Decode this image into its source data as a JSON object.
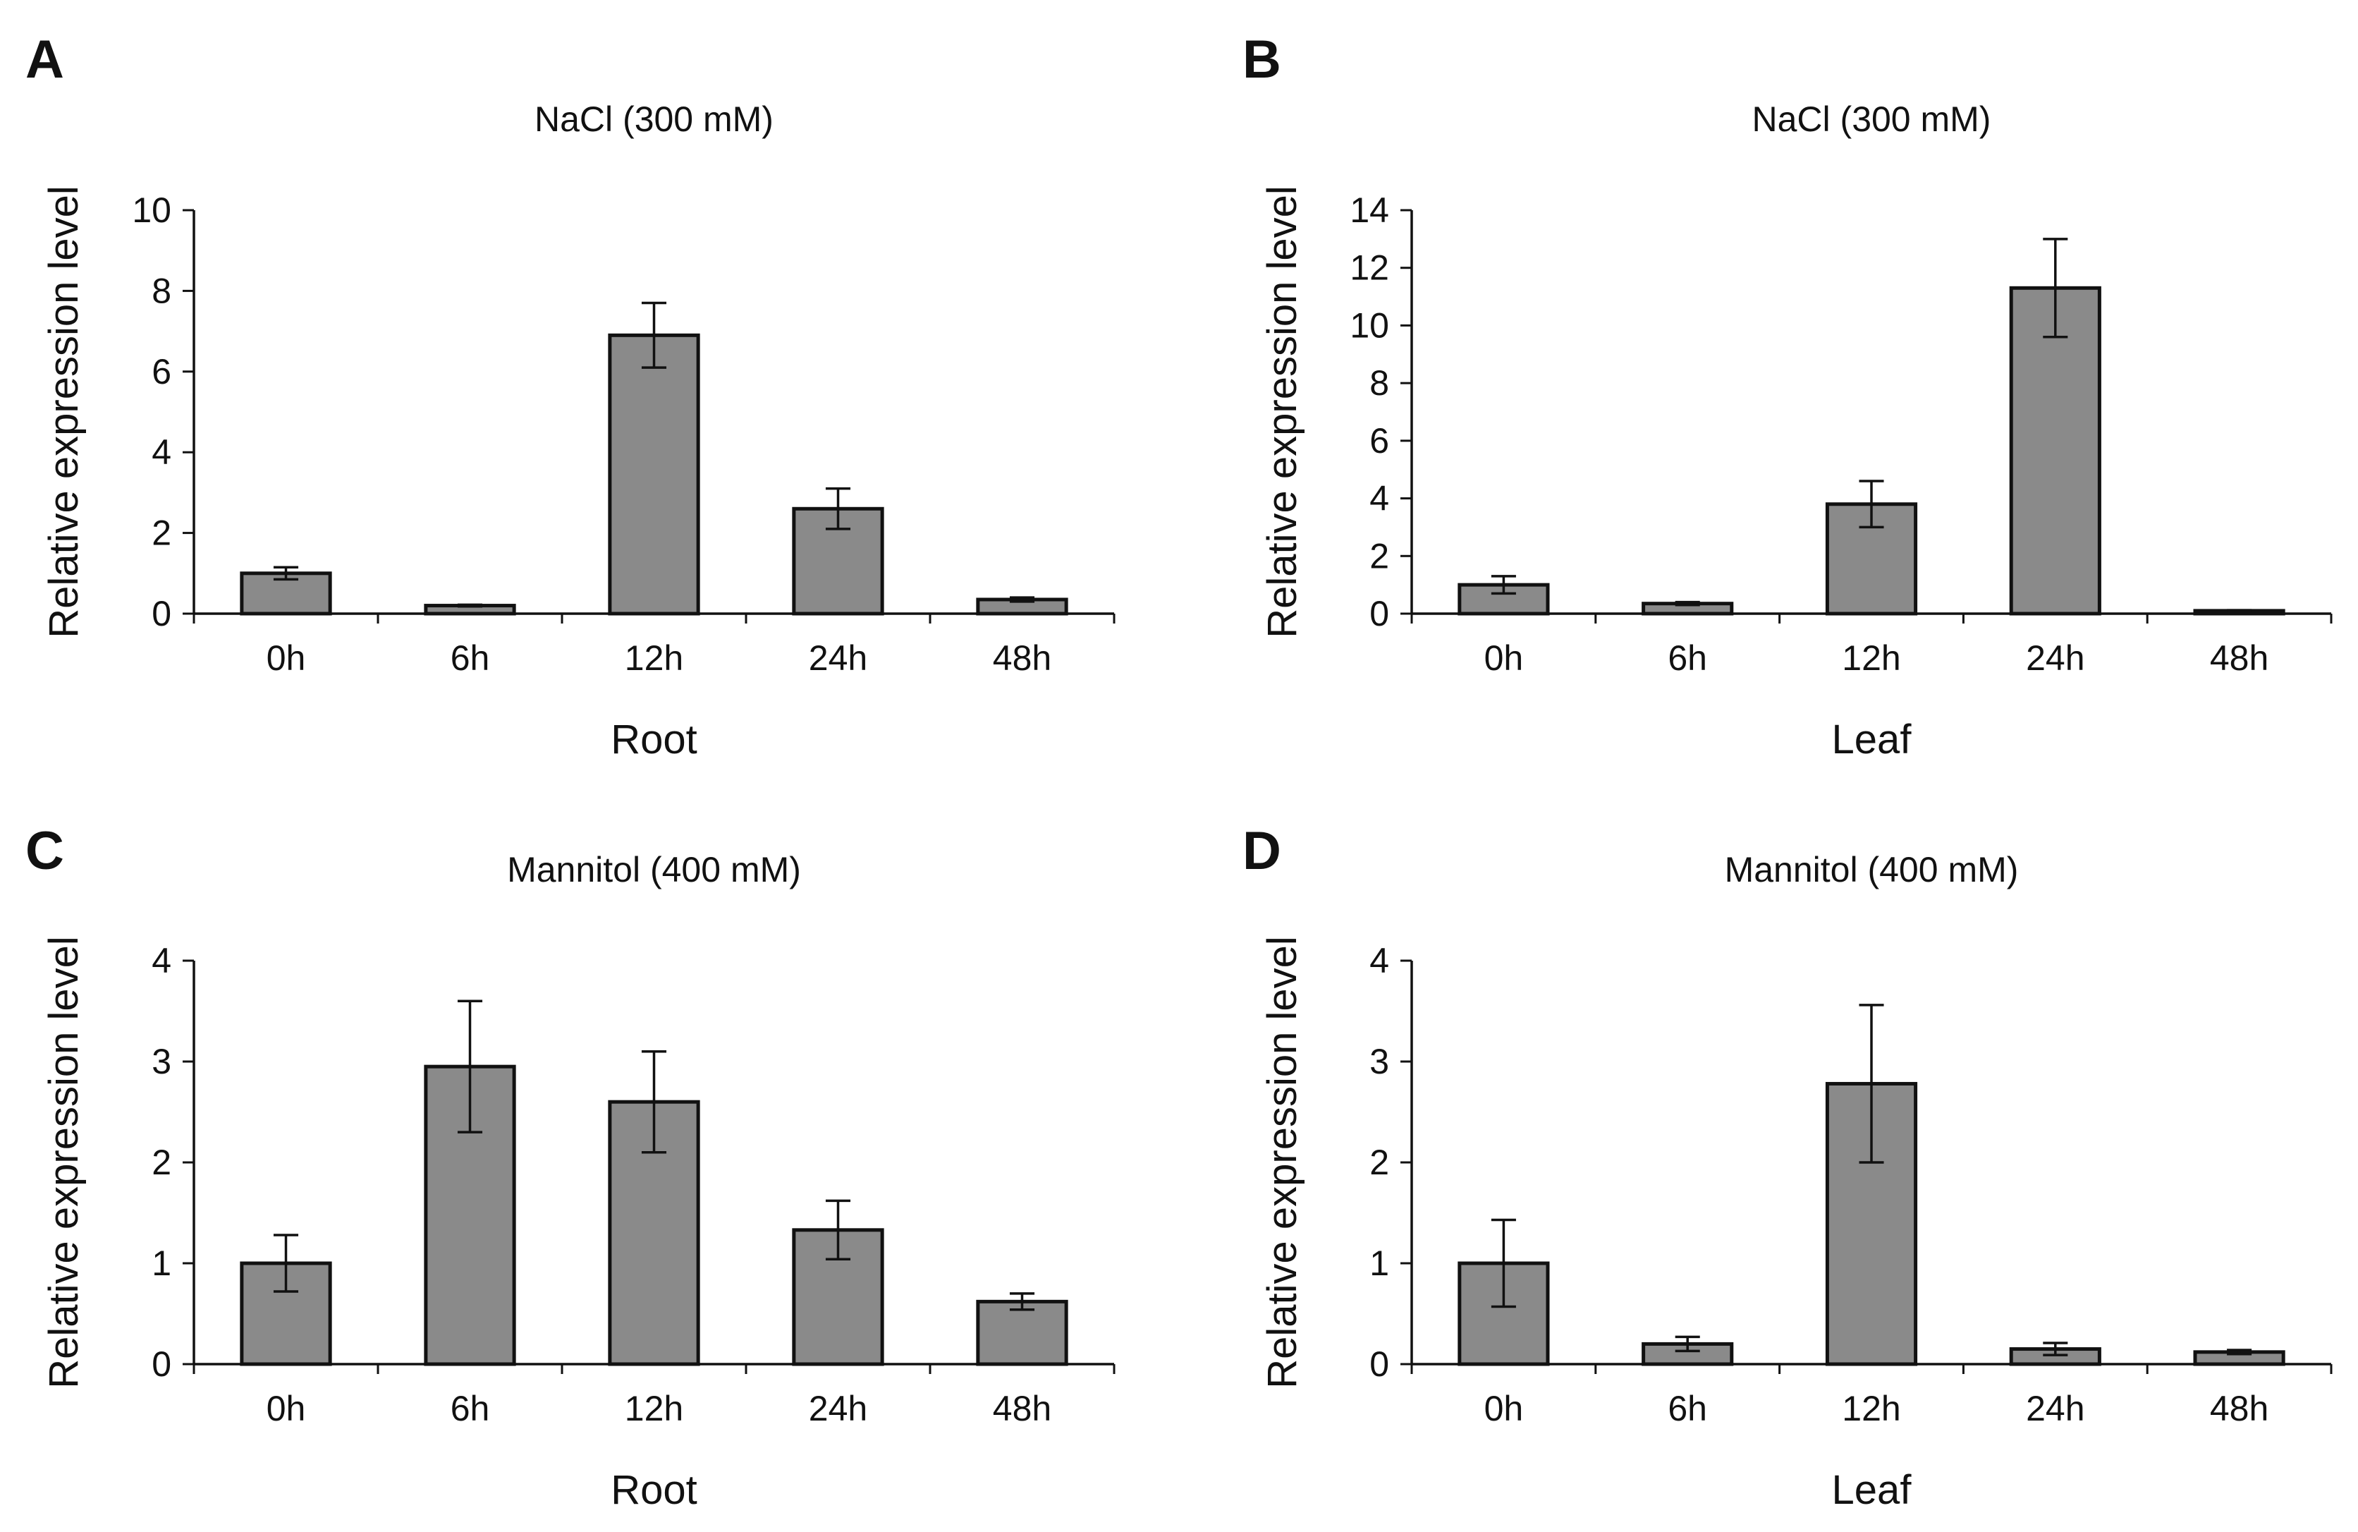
{
  "figure": {
    "panels": [
      "A",
      "B",
      "C",
      "D"
    ]
  },
  "chart_data": [
    {
      "panel": "A",
      "type": "bar",
      "title": "NaCl (300 mM)",
      "xlabel": "Root",
      "ylabel": "Relative  expression  level",
      "categories": [
        "0h",
        "6h",
        "12h",
        "24h",
        "48h"
      ],
      "values": [
        1.0,
        0.2,
        6.9,
        2.6,
        0.35
      ],
      "errors": [
        0.15,
        0.02,
        0.8,
        0.5,
        0.05
      ],
      "ylim": [
        0,
        10
      ],
      "yticks": [
        0,
        2,
        4,
        6,
        8,
        10
      ],
      "ytick_labels": [
        "0",
        "2",
        "4",
        "6",
        "8",
        "10"
      ],
      "grid": false,
      "bar_color": "#8a8a8a"
    },
    {
      "panel": "B",
      "type": "bar",
      "title": "NaCl (300 mM)",
      "xlabel": "Leaf",
      "ylabel": "Relative  expression  level",
      "categories": [
        "0h",
        "6h",
        "12h",
        "24h",
        "48h"
      ],
      "values": [
        1.0,
        0.35,
        3.8,
        11.3,
        0.1
      ],
      "errors": [
        0.3,
        0.05,
        0.8,
        1.7,
        0.02
      ],
      "ylim": [
        0,
        14
      ],
      "yticks": [
        0,
        2,
        4,
        6,
        8,
        10,
        12,
        14
      ],
      "ytick_labels": [
        "0",
        "2",
        "4",
        "6",
        "8",
        "10",
        "12",
        "14"
      ],
      "grid": false,
      "bar_color": "#8a8a8a"
    },
    {
      "panel": "C",
      "type": "bar",
      "title": "Mannitol  (400 mM)",
      "xlabel": "Root",
      "ylabel": "Relative  expression  level",
      "categories": [
        "0h",
        "6h",
        "12h",
        "24h",
        "48h"
      ],
      "values": [
        1.0,
        2.95,
        2.6,
        1.33,
        0.62
      ],
      "errors": [
        0.28,
        0.65,
        0.5,
        0.29,
        0.08
      ],
      "ylim": [
        0,
        4
      ],
      "yticks": [
        0,
        1,
        2,
        3,
        4
      ],
      "ytick_labels": [
        "0",
        "1",
        "2",
        "3",
        "4"
      ],
      "grid": false,
      "bar_color": "#8a8a8a"
    },
    {
      "panel": "D",
      "type": "bar",
      "title": "Mannitol  (400 mM)",
      "xlabel": "Leaf",
      "ylabel": "Relative  expression  level",
      "categories": [
        "0h",
        "6h",
        "12h",
        "24h",
        "48h"
      ],
      "values": [
        1.0,
        0.2,
        2.78,
        0.15,
        0.12
      ],
      "errors": [
        0.43,
        0.07,
        0.78,
        0.06,
        0.02
      ],
      "ylim": [
        0,
        4
      ],
      "yticks": [
        0,
        1,
        2,
        3,
        4
      ],
      "ytick_labels": [
        "0",
        "1",
        "2",
        "3",
        "4"
      ],
      "grid": false,
      "bar_color": "#8a8a8a"
    }
  ]
}
